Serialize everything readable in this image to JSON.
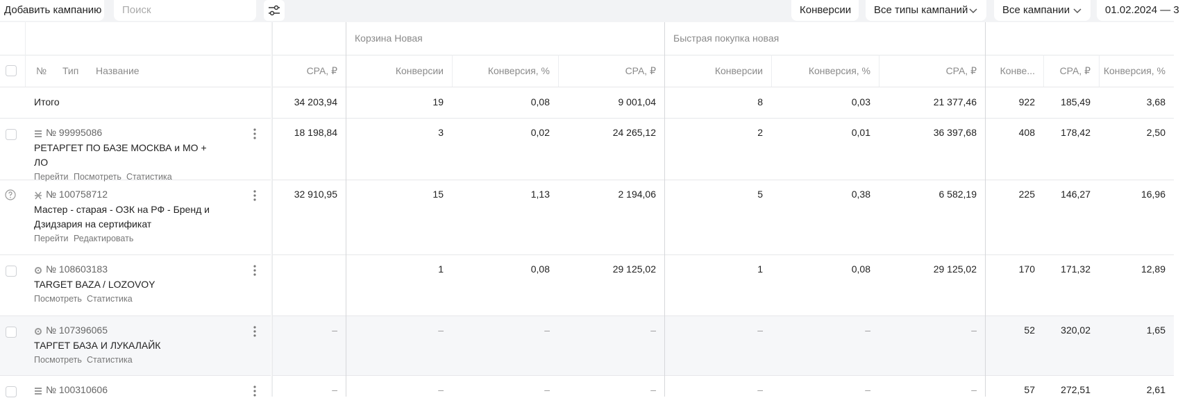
{
  "toolbar": {
    "add_button": "Добавить кампанию",
    "search_placeholder": "Поиск",
    "filters": [
      "Конверсии",
      "Все типы кампаний",
      "Все кампании"
    ],
    "date_range": "01.02.2024 — 3"
  },
  "table": {
    "group_headers": [
      "Корзина Новая",
      "Быстрая покупка новая"
    ],
    "left_headers": [
      "№",
      "Тип",
      "Название"
    ],
    "columns": [
      "CPA, ₽",
      "Конверсии",
      "Конверсия, %",
      "CPA, ₽",
      "Конверсии",
      "Конверсия, %",
      "CPA, ₽",
      "Конве...",
      "CPA, ₽",
      "Конверсия, %"
    ],
    "totals": {
      "label": "Итого",
      "cells": [
        "34 203,94",
        "19",
        "0,08",
        "9 001,04",
        "8",
        "0,03",
        "21 377,46",
        "922",
        "185,49",
        "3,68"
      ]
    },
    "rows": [
      {
        "number": "№ 99995086",
        "name": "РЕТАРГЕТ ПО БАЗЕ МОСКВА и МО + ЛО",
        "links": [
          "Перейти",
          "Посмотреть",
          "Статистика"
        ],
        "cells": [
          "18 198,84",
          "3",
          "0,02",
          "24 265,12",
          "2",
          "0,01",
          "36 397,68",
          "408",
          "178,42",
          "2,50"
        ]
      },
      {
        "number": "№ 100758712",
        "name": "Мастер - старая - ОЗК на РФ - Бренд и Дзидзария на сертификат",
        "links": [
          "Перейти",
          "Редактировать"
        ],
        "cells": [
          "32 910,95",
          "15",
          "1,13",
          "2 194,06",
          "5",
          "0,38",
          "6 582,19",
          "225",
          "146,27",
          "16,96"
        ]
      },
      {
        "number": "№ 108603183",
        "name": "TARGET BAZA / LOZOVOY",
        "links": [
          "Посмотреть",
          "Статистика"
        ],
        "cells": [
          null,
          "1",
          "0,08",
          "29 125,02",
          "1",
          "0,08",
          "29 125,02",
          "170",
          "171,32",
          "12,89"
        ]
      },
      {
        "number": "№ 107396065",
        "name": "ТАРГЕТ БАЗА И ЛУКАЛАЙК",
        "links": [
          "Посмотреть",
          "Статистика"
        ],
        "cells": [
          "–",
          "–",
          "–",
          "–",
          "–",
          "–",
          "–",
          "52",
          "320,02",
          "1,65"
        ]
      },
      {
        "number": "№ 100310606",
        "name": null,
        "links": [],
        "cells": [
          "–",
          "–",
          "–",
          "–",
          "–",
          "–",
          "–",
          "57",
          "272,51",
          "2,61"
        ]
      }
    ]
  }
}
